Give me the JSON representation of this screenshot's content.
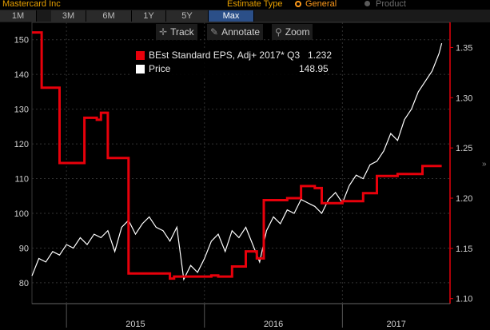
{
  "header": {
    "title": "Mastercard Inc",
    "estimate_type_label": "Estimate Type",
    "option_general": "General",
    "option_product": "Product"
  },
  "ranges": [
    "1M",
    "3M",
    "6M",
    "1Y",
    "5Y",
    "Max"
  ],
  "active_range": "Max",
  "toolbar": {
    "track": "Track",
    "annotate": "Annotate",
    "zoom": "Zoom"
  },
  "legend": {
    "eps_label": "BEst Standard EPS, Adj+ 2017* Q3",
    "eps_value": "1.232",
    "price_label": "Price",
    "price_value": "148.95"
  },
  "colors": {
    "eps": "#e8000b",
    "price": "#ffffff",
    "accent": "#e8a000",
    "active_range": "#2b4f88"
  },
  "chart_data": {
    "type": "line",
    "x_labels": [
      "2015",
      "2016",
      "2017"
    ],
    "left_axis": {
      "ticks": [
        80,
        90,
        100,
        110,
        120,
        130,
        140,
        150
      ],
      "ylim": [
        74,
        155
      ]
    },
    "right_axis": {
      "ticks": [
        "1.10",
        "1.15",
        "1.20",
        "1.25",
        "1.30",
        "1.35"
      ],
      "ylim": [
        1.095,
        1.375
      ]
    },
    "series": [
      {
        "name": "Price",
        "axis": "left",
        "x": [
          2014.75,
          2014.8,
          2014.85,
          2014.9,
          2014.95,
          2015.0,
          2015.05,
          2015.1,
          2015.15,
          2015.2,
          2015.25,
          2015.3,
          2015.35,
          2015.4,
          2015.45,
          2015.5,
          2015.55,
          2015.6,
          2015.65,
          2015.7,
          2015.75,
          2015.8,
          2015.85,
          2015.9,
          2015.95,
          2016.0,
          2016.05,
          2016.1,
          2016.15,
          2016.2,
          2016.25,
          2016.3,
          2016.35,
          2016.4,
          2016.45,
          2016.5,
          2016.55,
          2016.6,
          2016.65,
          2016.7,
          2016.75,
          2016.8,
          2016.85,
          2016.9,
          2016.95,
          2017.0,
          2017.05,
          2017.1,
          2017.15,
          2017.2,
          2017.25,
          2017.3,
          2017.35,
          2017.4,
          2017.45,
          2017.5,
          2017.55,
          2017.6,
          2017.65,
          2017.7,
          2017.72
        ],
        "values": [
          82,
          87,
          86,
          89,
          88,
          91,
          90,
          93,
          91,
          94,
          93,
          95,
          89,
          96,
          98,
          94,
          97,
          99,
          96,
          95,
          92,
          96,
          81,
          85,
          83,
          87,
          92,
          94,
          89,
          95,
          93,
          96,
          91,
          86,
          95,
          99,
          97,
          101,
          100,
          104,
          103,
          102,
          100,
          104,
          106,
          103,
          108,
          111,
          110,
          114,
          115,
          118,
          123,
          121,
          127,
          130,
          135,
          138,
          141,
          146,
          149
        ]
      },
      {
        "name": "BEst Standard EPS, Adj+ 2017* Q3",
        "axis": "right",
        "x": [
          2014.75,
          2014.82,
          2014.82,
          2014.95,
          2014.95,
          2015.13,
          2015.13,
          2015.22,
          2015.22,
          2015.25,
          2015.25,
          2015.3,
          2015.3,
          2015.45,
          2015.45,
          2015.75,
          2015.75,
          2015.78,
          2015.78,
          2016.05,
          2016.05,
          2016.1,
          2016.1,
          2016.2,
          2016.2,
          2016.3,
          2016.3,
          2016.38,
          2016.38,
          2016.43,
          2016.43,
          2016.6,
          2016.6,
          2016.7,
          2016.7,
          2016.8,
          2016.8,
          2016.85,
          2016.85,
          2017.0,
          2017.0,
          2017.15,
          2017.15,
          2017.25,
          2017.25,
          2017.4,
          2017.4,
          2017.58,
          2017.58,
          2017.72
        ],
        "values": [
          1.365,
          1.365,
          1.31,
          1.31,
          1.235,
          1.235,
          1.28,
          1.28,
          1.278,
          1.278,
          1.285,
          1.285,
          1.24,
          1.24,
          1.125,
          1.125,
          1.12,
          1.12,
          1.122,
          1.122,
          1.123,
          1.123,
          1.122,
          1.122,
          1.132,
          1.132,
          1.147,
          1.147,
          1.14,
          1.14,
          1.198,
          1.198,
          1.2,
          1.2,
          1.212,
          1.212,
          1.21,
          1.21,
          1.195,
          1.195,
          1.197,
          1.197,
          1.205,
          1.205,
          1.222,
          1.222,
          1.224,
          1.224,
          1.232,
          1.232
        ]
      }
    ],
    "grid": true,
    "legend_position": "top-center"
  }
}
